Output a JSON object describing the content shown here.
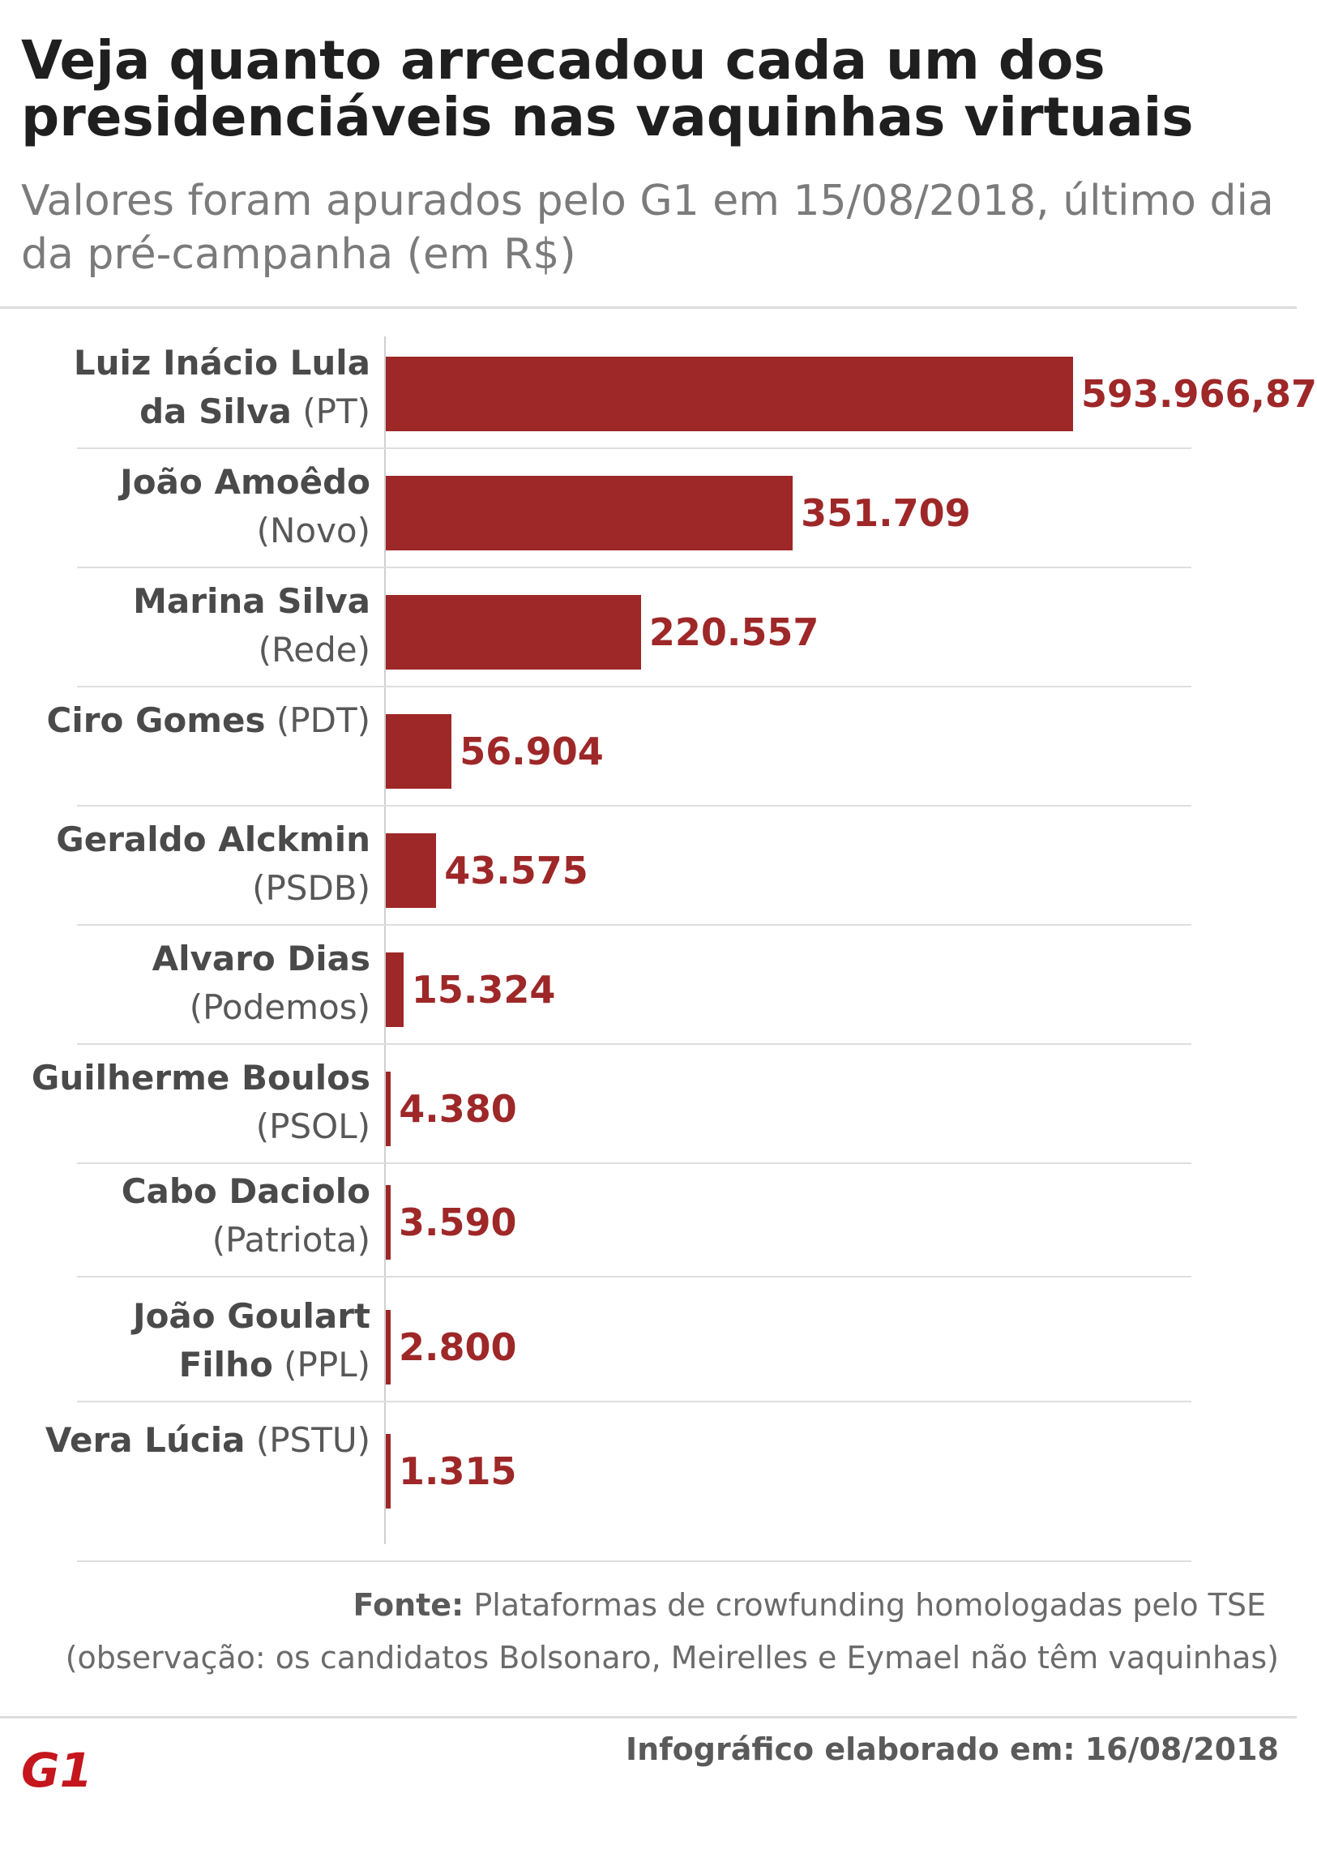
{
  "header": {
    "title": "Veja quanto arrecadou cada um dos presidenciáveis nas vaquinhas virtuais",
    "subtitle": "Valores foram apurados pelo G1 em 15/08/2018, último dia da pré-campanha (em R$)"
  },
  "chart_data": {
    "type": "bar",
    "orientation": "horizontal",
    "title": "Veja quanto arrecadou cada um dos presidenciáveis nas vaquinhas virtuais",
    "subtitle": "Valores foram apurados pelo G1 em 15/08/2018, último dia da pré-campanha (em R$)",
    "categories": [
      {
        "name": "Luiz Inácio Lula da Silva",
        "party": "(PT)"
      },
      {
        "name": "João Amoêdo",
        "party": "(Novo)"
      },
      {
        "name": "Marina Silva",
        "party": "(Rede)"
      },
      {
        "name": "Ciro Gomes",
        "party": "(PDT)"
      },
      {
        "name": "Geraldo Alckmin",
        "party": "(PSDB)"
      },
      {
        "name": "Alvaro Dias",
        "party": "(Podemos)"
      },
      {
        "name": "Guilherme Boulos",
        "party": "(PSOL)"
      },
      {
        "name": "Cabo Daciolo",
        "party": "(Patriota)"
      },
      {
        "name": "João Goulart Filho",
        "party": "(PPL)"
      },
      {
        "name": "Vera Lúcia",
        "party": "(PSTU)"
      }
    ],
    "values": [
      593966.87,
      351709,
      220557,
      56904,
      43575,
      15324,
      4380,
      3590,
      2800,
      1315
    ],
    "value_labels": [
      "593.966,87",
      "351.709",
      "220.557",
      "56.904",
      "43.575",
      "15.324",
      "4.380",
      "3.590",
      "2.800",
      "1.315"
    ],
    "bar_color": "#9e2728",
    "grid": false,
    "legend": "none"
  },
  "footer": {
    "source_label": "Fonte:",
    "source_text": "Plataformas de crowfunding homologadas pelo TSE",
    "note": "(observação: os candidatos Bolsonaro, Meirelles e Eymael não têm vaquinhas)",
    "date_label": "Infográfico elaborado em:",
    "date_value": "16/08/2018",
    "logo_text": "G1"
  }
}
